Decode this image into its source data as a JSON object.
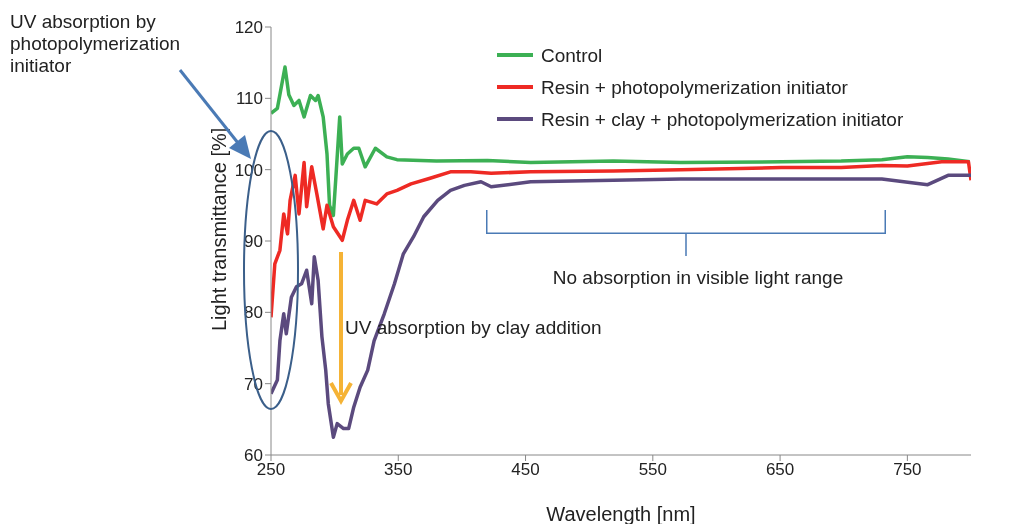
{
  "chart_data": {
    "type": "line",
    "xlabel": "Wavelength [nm]",
    "ylabel": "Light transmittance [%]",
    "xlim": [
      250,
      800
    ],
    "xticks": [
      250,
      350,
      450,
      550,
      650,
      750
    ],
    "ylim": [
      60,
      120
    ],
    "yticks": [
      60,
      70,
      80,
      90,
      100,
      110,
      120
    ],
    "grid": false,
    "legend": "top right",
    "marker": "none",
    "line_style": "solid",
    "annotations": [
      "UV absorption by photopolymerization initiator",
      "UV absorption by clay addition",
      "No absorption in visible light range"
    ],
    "series": [
      {
        "name": "Control",
        "color": "#3cb054",
        "x": [
          250,
          255,
          261,
          264,
          268,
          272,
          276,
          281,
          285,
          287,
          291,
          294,
          296,
          299,
          301,
          304,
          306,
          310,
          315,
          319,
          324,
          332,
          341,
          349,
          380,
          420,
          454,
          519,
          572,
          651,
          698,
          730,
          750,
          766,
          782,
          799
        ],
        "values": [
          107.9,
          108.6,
          114.4,
          110.5,
          109,
          109.7,
          107.4,
          110.4,
          109.7,
          110.4,
          107.4,
          102.2,
          95,
          93.6,
          99,
          107.4,
          100.8,
          102.2,
          103,
          103,
          100.4,
          103,
          101.8,
          101.4,
          101.2,
          101.3,
          101,
          101.2,
          101,
          101.1,
          101.2,
          101.4,
          101.8,
          101.7,
          101.5,
          101.1
        ]
      },
      {
        "name": "Resin + photopolymerization initiator",
        "color": "#ee2a24",
        "x": [
          250,
          253,
          257,
          260,
          263,
          265,
          269,
          272,
          276,
          278,
          282,
          286,
          291,
          294,
          299,
          306,
          310,
          315,
          320,
          324,
          333,
          341,
          349,
          360,
          375,
          391,
          407,
          423,
          454,
          519,
          572,
          651,
          698,
          730,
          750,
          777,
          798,
          800
        ],
        "values": [
          79.3,
          86.8,
          88.7,
          93.8,
          91,
          95.7,
          99.2,
          93.8,
          101,
          94.8,
          100.4,
          96.6,
          91.7,
          95,
          92,
          90.1,
          92.9,
          95.7,
          92.9,
          95.7,
          95.2,
          96.6,
          97.1,
          98,
          98.8,
          99.7,
          99.7,
          99.5,
          99.7,
          99.8,
          100,
          100.3,
          100.3,
          100.6,
          100.5,
          101.1,
          101.1,
          98.5
        ]
      },
      {
        "name": "Resin + clay + photopolymerization initiator",
        "color": "#5b4a7e",
        "x": [
          250,
          255,
          257,
          260,
          262,
          266,
          270,
          274,
          278,
          282,
          284,
          287,
          290,
          293,
          295,
          299,
          302,
          307,
          311,
          315,
          320,
          326,
          331,
          339,
          347,
          354,
          362,
          370,
          381,
          391,
          402,
          415,
          423,
          454,
          519,
          572,
          651,
          730,
          766,
          782,
          800
        ],
        "values": [
          68.6,
          70.5,
          76,
          79.8,
          77,
          82.1,
          83.6,
          84,
          85.9,
          81.2,
          87.8,
          84.5,
          76.6,
          71.9,
          67.2,
          62.5,
          64.4,
          63.7,
          63.7,
          66.7,
          69.5,
          71.9,
          76,
          79.8,
          84,
          88.2,
          90.6,
          93.4,
          95.7,
          97.1,
          97.8,
          98.3,
          97.6,
          98.3,
          98.5,
          98.7,
          98.7,
          98.7,
          97.9,
          99.2,
          99.2
        ]
      }
    ]
  }
}
